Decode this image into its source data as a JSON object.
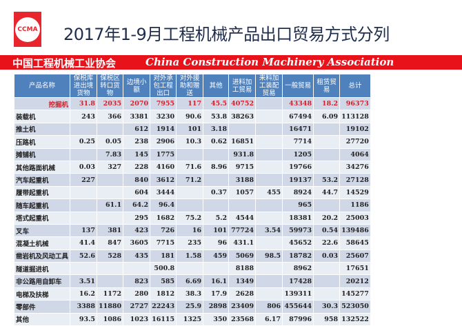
{
  "logo": {
    "text": "CCMA",
    "color": "#e8262d"
  },
  "title": "2017年1-9月工程机械产品出口贸易方式分列",
  "band": {
    "cn": "中国工程机械工业协会",
    "en": "China Construction Machinery Association",
    "color": "#e8121b"
  },
  "table": {
    "headers": [
      "产品名称",
      "保税库进出境货物",
      "保税区转口货物",
      "边境小额",
      "对外承包工程出口",
      "对外援助和赠送",
      "其他",
      "进料加工贸易",
      "来料加工装配贸易",
      "一般贸易",
      "租赁贸易",
      "总计"
    ],
    "rows": [
      [
        "挖掘机",
        "31.8",
        "2035",
        "2070",
        "7955",
        "117",
        "45.5",
        "40752",
        "",
        "43348",
        "18.2",
        "96373"
      ],
      [
        "装载机",
        "243",
        "366",
        "3381",
        "3230",
        "90.6",
        "53.8",
        "38263",
        "",
        "67494",
        "6.09",
        "113128"
      ],
      [
        "推土机",
        "",
        "",
        "612",
        "1914",
        "101",
        "3.18",
        "",
        "",
        "16471",
        "",
        "19102"
      ],
      [
        "压路机",
        "0.25",
        "0.05",
        "238",
        "2906",
        "10.3",
        "0.62",
        "16851",
        "",
        "7714",
        "",
        "27720"
      ],
      [
        "摊铺机",
        "",
        "7.83",
        "145",
        "1775",
        "",
        "",
        "931.8",
        "",
        "1205",
        "",
        "4064"
      ],
      [
        "其他路面机械",
        "0.03",
        "327",
        "228",
        "4160",
        "71.6",
        "8.96",
        "9715",
        "",
        "19766",
        "",
        "34276"
      ],
      [
        "汽车起重机",
        "227",
        "",
        "840",
        "3612",
        "71.2",
        "",
        "3188",
        "",
        "19137",
        "53.2",
        "27128"
      ],
      [
        "履带起重机",
        "",
        "",
        "604",
        "3444",
        "",
        "0.37",
        "1057",
        "455",
        "8924",
        "44.7",
        "14529"
      ],
      [
        "随车起重机",
        "",
        "61.1",
        "64.2",
        "96.4",
        "",
        "",
        "",
        "",
        "965",
        "",
        "1186"
      ],
      [
        "塔式起重机",
        "",
        "",
        "295",
        "1682",
        "75.2",
        "5.2",
        "4544",
        "",
        "18381",
        "20.2",
        "25003"
      ],
      [
        "叉车",
        "137",
        "381",
        "423",
        "726",
        "16",
        "101",
        "77724",
        "3.54",
        "59973",
        "0.54",
        "139486"
      ],
      [
        "混凝土机械",
        "41.4",
        "847",
        "3605",
        "7715",
        "235",
        "96",
        "431.1",
        "",
        "45652",
        "22.6",
        "58645"
      ],
      [
        "凿岩机及风动工具",
        "52.6",
        "528",
        "435",
        "181",
        "1.58",
        "459",
        "5069",
        "98.5",
        "18782",
        "0.03",
        "25607"
      ],
      [
        "隧道掘进机",
        "",
        "",
        "",
        "500.8",
        "",
        "",
        "8188",
        "",
        "8962",
        "",
        "17651"
      ],
      [
        "非公路用自卸车",
        "3.51",
        "",
        "823",
        "585",
        "6.69",
        "16.1",
        "1349",
        "",
        "17428",
        "",
        "20212"
      ],
      [
        "电梯及扶梯",
        "16.2",
        "1172",
        "280",
        "1812",
        "38.3",
        "17.9",
        "2628",
        "",
        "139311",
        "",
        "145277"
      ],
      [
        "零部件",
        "3388",
        "11880",
        "2727",
        "22243",
        "25.9",
        "2898",
        "23409",
        "806",
        "455644",
        "30.3",
        "523050"
      ],
      [
        "其他",
        "93.5",
        "1086",
        "1023",
        "16115",
        "1325",
        "350",
        "23568",
        "6.17",
        "87996",
        "958",
        "132522"
      ]
    ]
  }
}
